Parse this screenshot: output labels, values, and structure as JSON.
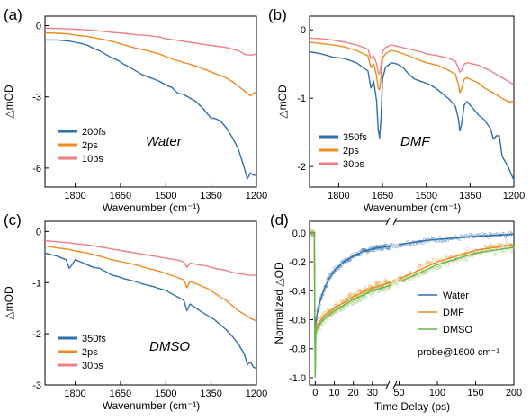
{
  "colors": {
    "blue": "#2f6fad",
    "orange": "#f08a1e",
    "pink": "#f07f82",
    "green": "#5fb84a",
    "green_scatter": "#8fd07a"
  },
  "chart_data": [
    {
      "type": "line",
      "panel": "(a)",
      "label": "Water",
      "xlabel": "Wavenumber (cm⁻¹)",
      "ylabel": "△mOD",
      "xlim": [
        1900,
        1200
      ],
      "ylim": [
        -6.8,
        0.4
      ],
      "xticks": [
        "1800",
        "1650",
        "1500",
        "1350",
        "1200"
      ],
      "yticks": [
        "0",
        "-3",
        "-6"
      ],
      "legend_position": "bottom-left",
      "series": [
        {
          "name": "200fs",
          "color": "#2f6fad",
          "x": [
            1900,
            1860,
            1820,
            1800,
            1780,
            1760,
            1740,
            1720,
            1700,
            1680,
            1660,
            1640,
            1620,
            1600,
            1580,
            1560,
            1540,
            1520,
            1500,
            1480,
            1460,
            1440,
            1420,
            1400,
            1380,
            1360,
            1350,
            1340,
            1320,
            1300,
            1280,
            1260,
            1250,
            1240,
            1230,
            1220,
            1210,
            1200
          ],
          "y": [
            -0.6,
            -0.6,
            -0.65,
            -0.7,
            -0.75,
            -0.82,
            -0.95,
            -1.05,
            -1.2,
            -1.35,
            -1.45,
            -1.62,
            -1.75,
            -1.9,
            -2.05,
            -2.15,
            -2.25,
            -2.35,
            -2.5,
            -2.6,
            -2.85,
            -2.9,
            -3.05,
            -3.2,
            -3.45,
            -3.75,
            -3.9,
            -3.9,
            -4.0,
            -4.3,
            -4.7,
            -5.2,
            -5.6,
            -6.0,
            -6.45,
            -6.2,
            -6.3,
            -6.3
          ]
        },
        {
          "name": "2ps",
          "color": "#f08a1e",
          "x": [
            1900,
            1860,
            1820,
            1800,
            1760,
            1720,
            1680,
            1640,
            1600,
            1560,
            1520,
            1500,
            1480,
            1440,
            1400,
            1360,
            1340,
            1300,
            1280,
            1260,
            1240,
            1220,
            1210,
            1200
          ],
          "y": [
            -0.3,
            -0.32,
            -0.35,
            -0.4,
            -0.45,
            -0.55,
            -0.65,
            -0.8,
            -0.95,
            -1.05,
            -1.2,
            -1.3,
            -1.4,
            -1.55,
            -1.7,
            -1.9,
            -2.0,
            -2.2,
            -2.35,
            -2.55,
            -2.75,
            -2.95,
            -2.85,
            -2.8
          ]
        },
        {
          "name": "10ps",
          "color": "#f07f82",
          "x": [
            1900,
            1860,
            1820,
            1800,
            1760,
            1720,
            1680,
            1640,
            1600,
            1560,
            1520,
            1500,
            1460,
            1420,
            1380,
            1340,
            1300,
            1260,
            1240,
            1220,
            1200
          ],
          "y": [
            -0.1,
            -0.12,
            -0.14,
            -0.15,
            -0.18,
            -0.22,
            -0.28,
            -0.32,
            -0.38,
            -0.42,
            -0.48,
            -0.55,
            -0.62,
            -0.7,
            -0.78,
            -0.85,
            -0.92,
            -1.05,
            -1.2,
            -1.25,
            -1.2
          ]
        }
      ]
    },
    {
      "type": "line",
      "panel": "(b)",
      "label": "DMF",
      "xlabel": "Wavenumber (cm⁻¹)",
      "ylabel": "△mOD",
      "xlim": [
        1900,
        1200
      ],
      "ylim": [
        -2.3,
        0.2
      ],
      "xticks": [
        "1800",
        "1650",
        "1500",
        "1350",
        "1200"
      ],
      "yticks": [
        "0",
        "-1",
        "-2"
      ],
      "legend_position": "bottom-left",
      "series": [
        {
          "name": "350fs",
          "color": "#2f6fad",
          "x": [
            1900,
            1860,
            1820,
            1780,
            1740,
            1700,
            1690,
            1680,
            1670,
            1665,
            1660,
            1655,
            1650,
            1640,
            1620,
            1600,
            1580,
            1560,
            1540,
            1520,
            1500,
            1480,
            1460,
            1440,
            1420,
            1400,
            1390,
            1385,
            1380,
            1370,
            1360,
            1340,
            1320,
            1300,
            1280,
            1270,
            1260,
            1250,
            1240,
            1220,
            1200
          ],
          "y": [
            -0.32,
            -0.35,
            -0.4,
            -0.42,
            -0.48,
            -0.6,
            -0.85,
            -0.75,
            -1.05,
            -1.45,
            -1.58,
            -1.3,
            -0.72,
            -0.55,
            -0.48,
            -0.5,
            -0.55,
            -0.65,
            -0.72,
            -0.75,
            -0.78,
            -0.82,
            -0.88,
            -0.95,
            -1.02,
            -1.12,
            -1.3,
            -1.48,
            -1.4,
            -1.1,
            -1.05,
            -1.15,
            -1.25,
            -1.32,
            -1.45,
            -1.6,
            -1.55,
            -1.55,
            -1.85,
            -2.0,
            -2.2
          ]
        },
        {
          "name": "2ps",
          "color": "#f08a1e",
          "x": [
            1900,
            1860,
            1820,
            1780,
            1740,
            1700,
            1690,
            1680,
            1670,
            1665,
            1660,
            1655,
            1650,
            1640,
            1620,
            1600,
            1560,
            1520,
            1500,
            1460,
            1420,
            1400,
            1390,
            1385,
            1380,
            1370,
            1360,
            1320,
            1300,
            1280,
            1260,
            1240,
            1220,
            1200
          ],
          "y": [
            -0.18,
            -0.2,
            -0.22,
            -0.25,
            -0.3,
            -0.38,
            -0.55,
            -0.5,
            -0.68,
            -0.85,
            -0.88,
            -0.7,
            -0.42,
            -0.35,
            -0.3,
            -0.32,
            -0.38,
            -0.45,
            -0.48,
            -0.52,
            -0.6,
            -0.65,
            -0.8,
            -0.92,
            -0.88,
            -0.72,
            -0.7,
            -0.78,
            -0.85,
            -0.9,
            -0.95,
            -1.0,
            -1.05,
            -1.05
          ]
        },
        {
          "name": "30ps",
          "color": "#f07f82",
          "x": [
            1900,
            1860,
            1820,
            1780,
            1740,
            1700,
            1690,
            1680,
            1670,
            1665,
            1660,
            1655,
            1650,
            1640,
            1620,
            1600,
            1560,
            1520,
            1500,
            1460,
            1420,
            1400,
            1390,
            1385,
            1380,
            1370,
            1360,
            1320,
            1300,
            1280,
            1260,
            1240,
            1220,
            1200
          ],
          "y": [
            -0.12,
            -0.13,
            -0.15,
            -0.18,
            -0.22,
            -0.28,
            -0.42,
            -0.38,
            -0.5,
            -0.62,
            -0.65,
            -0.52,
            -0.32,
            -0.26,
            -0.22,
            -0.24,
            -0.28,
            -0.32,
            -0.35,
            -0.38,
            -0.42,
            -0.46,
            -0.56,
            -0.62,
            -0.6,
            -0.5,
            -0.48,
            -0.52,
            -0.56,
            -0.6,
            -0.65,
            -0.7,
            -0.75,
            -0.8
          ]
        }
      ]
    },
    {
      "type": "line",
      "panel": "(c)",
      "label": "DMSO",
      "xlabel": "Wavenumber (cm⁻¹)",
      "ylabel": "△mOD",
      "xlim": [
        1900,
        1200
      ],
      "ylim": [
        -3.0,
        0.2
      ],
      "xticks": [
        "1800",
        "1650",
        "1500",
        "1350",
        "1200"
      ],
      "yticks": [
        "0",
        "-1",
        "-2",
        "-3"
      ],
      "legend_position": "bottom-left",
      "series": [
        {
          "name": "350fs",
          "color": "#2f6fad",
          "x": [
            1900,
            1860,
            1830,
            1820,
            1810,
            1800,
            1780,
            1760,
            1740,
            1720,
            1700,
            1680,
            1660,
            1640,
            1620,
            1600,
            1580,
            1560,
            1540,
            1520,
            1500,
            1480,
            1460,
            1440,
            1430,
            1420,
            1400,
            1380,
            1360,
            1340,
            1320,
            1300,
            1280,
            1260,
            1240,
            1230,
            1220,
            1210,
            1200
          ],
          "y": [
            -0.42,
            -0.48,
            -0.55,
            -0.72,
            -0.65,
            -0.55,
            -0.6,
            -0.65,
            -0.7,
            -0.72,
            -0.78,
            -0.85,
            -0.88,
            -0.92,
            -0.95,
            -0.98,
            -1.02,
            -1.05,
            -1.08,
            -1.12,
            -1.15,
            -1.22,
            -1.28,
            -1.35,
            -1.55,
            -1.42,
            -1.5,
            -1.58,
            -1.65,
            -1.72,
            -1.82,
            -1.92,
            -2.05,
            -2.2,
            -2.4,
            -2.6,
            -2.55,
            -2.65,
            -2.68
          ]
        },
        {
          "name": "2ps",
          "color": "#f08a1e",
          "x": [
            1900,
            1860,
            1820,
            1800,
            1760,
            1720,
            1680,
            1640,
            1600,
            1560,
            1520,
            1500,
            1460,
            1440,
            1430,
            1420,
            1400,
            1360,
            1340,
            1320,
            1300,
            1280,
            1260,
            1240,
            1220,
            1200
          ],
          "y": [
            -0.28,
            -0.32,
            -0.35,
            -0.38,
            -0.42,
            -0.48,
            -0.55,
            -0.6,
            -0.65,
            -0.72,
            -0.78,
            -0.82,
            -0.9,
            -0.95,
            -1.1,
            -0.98,
            -1.02,
            -1.12,
            -1.2,
            -1.28,
            -1.35,
            -1.45,
            -1.55,
            -1.62,
            -1.7,
            -1.75
          ]
        },
        {
          "name": "30ps",
          "color": "#f07f82",
          "x": [
            1900,
            1860,
            1820,
            1800,
            1760,
            1720,
            1680,
            1640,
            1600,
            1560,
            1520,
            1500,
            1460,
            1440,
            1430,
            1420,
            1400,
            1360,
            1340,
            1320,
            1300,
            1280,
            1260,
            1240,
            1220,
            1200
          ],
          "y": [
            -0.18,
            -0.2,
            -0.22,
            -0.24,
            -0.26,
            -0.3,
            -0.34,
            -0.38,
            -0.42,
            -0.46,
            -0.5,
            -0.52,
            -0.56,
            -0.6,
            -0.7,
            -0.62,
            -0.64,
            -0.68,
            -0.72,
            -0.74,
            -0.76,
            -0.8,
            -0.82,
            -0.84,
            -0.86,
            -0.85
          ]
        }
      ]
    },
    {
      "type": "line",
      "panel": "(d)",
      "xlabel": "Time Delay (ps)",
      "ylabel": "Normalized △OD",
      "ylim": [
        -1.05,
        0.08
      ],
      "x_broken_axis": {
        "segment1": [
          -3,
          40
        ],
        "segment2": [
          40,
          200
        ]
      },
      "xticks": [
        "0",
        "10",
        "20",
        "30",
        "50",
        "100",
        "150",
        "200"
      ],
      "yticks": [
        "0.0",
        "-0.2",
        "-0.4",
        "-0.6",
        "-0.8",
        "-1.0"
      ],
      "legend_position": "lower-right",
      "annotation": "probe@1600 cm⁻¹",
      "series": [
        {
          "name": "Water",
          "color": "#2f6fad",
          "x": [
            -2,
            -0.5,
            0,
            0.3,
            1,
            2,
            3,
            5,
            7,
            10,
            15,
            20,
            25,
            30,
            35,
            40,
            50,
            75,
            100,
            150,
            200
          ],
          "y": [
            0,
            0,
            -0.95,
            -0.62,
            -0.56,
            -0.5,
            -0.45,
            -0.38,
            -0.32,
            -0.26,
            -0.2,
            -0.16,
            -0.13,
            -0.11,
            -0.1,
            -0.09,
            -0.08,
            -0.06,
            -0.045,
            -0.025,
            -0.01
          ]
        },
        {
          "name": "DMF",
          "color": "#f08a1e",
          "x": [
            -2,
            -0.5,
            0,
            0.3,
            1,
            3,
            5,
            10,
            15,
            20,
            25,
            30,
            35,
            40,
            50,
            75,
            100,
            125,
            150,
            175,
            200
          ],
          "y": [
            0,
            0,
            -0.98,
            -0.66,
            -0.64,
            -0.6,
            -0.57,
            -0.52,
            -0.48,
            -0.44,
            -0.41,
            -0.38,
            -0.36,
            -0.34,
            -0.32,
            -0.26,
            -0.2,
            -0.16,
            -0.12,
            -0.1,
            -0.08
          ]
        },
        {
          "name": "DMSO",
          "color": "#5fb84a",
          "x": [
            -2,
            -0.5,
            0,
            0.3,
            1,
            3,
            5,
            10,
            15,
            20,
            25,
            30,
            35,
            40,
            50,
            75,
            100,
            125,
            150,
            175,
            200
          ],
          "y": [
            0,
            0,
            -1.0,
            -0.68,
            -0.66,
            -0.62,
            -0.59,
            -0.54,
            -0.5,
            -0.46,
            -0.43,
            -0.4,
            -0.38,
            -0.36,
            -0.34,
            -0.28,
            -0.22,
            -0.18,
            -0.14,
            -0.12,
            -0.1
          ]
        }
      ]
    }
  ]
}
